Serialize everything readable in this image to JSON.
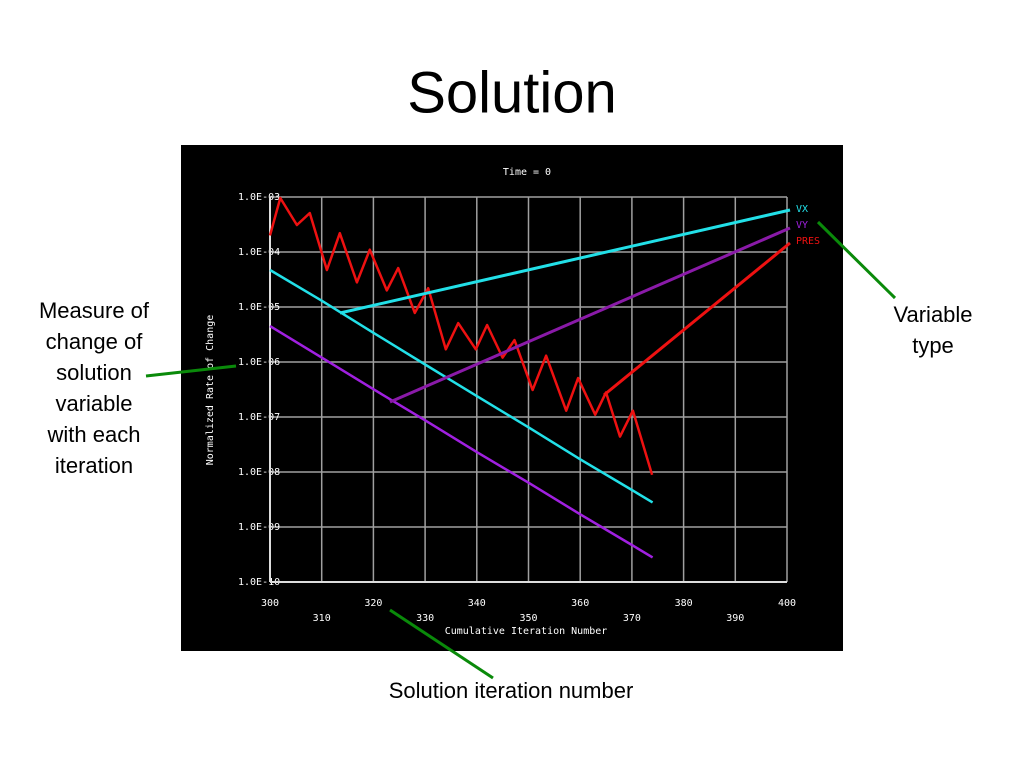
{
  "slide_title": "Solution",
  "annotations": {
    "measure": [
      "Measure of",
      "change of",
      "solution",
      "variable",
      "with each",
      "iteration"
    ],
    "variable_type": [
      "Variable",
      "type"
    ],
    "iteration": [
      "Solution iteration number"
    ]
  },
  "chart_data": {
    "type": "line",
    "title": "Time = 0",
    "x_label": "Cumulative Iteration Number",
    "y_label": "Normalized Rate of Change",
    "y_scale": "log",
    "grid": true,
    "legend": "right",
    "xlim": [
      300,
      400
    ],
    "xticks": [
      300,
      310,
      320,
      330,
      340,
      350,
      360,
      370,
      380,
      390,
      400
    ],
    "ylim": [
      1e-10,
      0.001
    ],
    "yticks": [
      {
        "value": 0.001,
        "label": "1.0E-03"
      },
      {
        "value": 0.0001,
        "label": "1.0E-04"
      },
      {
        "value": 1e-05,
        "label": "1.0E-05"
      },
      {
        "value": 1e-06,
        "label": "1.0E-06"
      },
      {
        "value": 1e-07,
        "label": "1.0E-07"
      },
      {
        "value": 1e-08,
        "label": "1.0E-08"
      },
      {
        "value": 1e-09,
        "label": "1.0E-09"
      },
      {
        "value": 1e-10,
        "label": "1.0E-10"
      }
    ],
    "series": [
      {
        "name": "VX",
        "color": "#22e0e8",
        "x": [
          300,
          310,
          320,
          330,
          340,
          350,
          360,
          370,
          374
        ],
        "values": [
          4.7e-05,
          1.3e-05,
          3.4e-06,
          9e-07,
          2.4e-07,
          6.5e-08,
          1.7e-08,
          4.7e-09,
          2.8e-09
        ]
      },
      {
        "name": "VY",
        "color": "#a020e0",
        "x": [
          300,
          310,
          320,
          330,
          340,
          350,
          360,
          370,
          374
        ],
        "values": [
          4.5e-06,
          1.2e-06,
          3.2e-07,
          8.7e-08,
          2.3e-08,
          6.4e-09,
          1.7e-09,
          4.7e-10,
          2.8e-10
        ]
      },
      {
        "name": "PRES",
        "color": "#ee1111",
        "x": [
          300,
          302,
          305.2,
          307.7,
          311,
          313.5,
          316.8,
          319.3,
          322.6,
          324.8,
          328,
          330.6,
          334,
          336.4,
          339.8,
          342,
          345,
          347.3,
          350.8,
          353.4,
          357.3,
          359.6,
          362.9,
          365,
          367.7,
          370.2,
          373.9
        ],
        "values": [
          0.0002,
          0.00096,
          0.00031,
          0.00051,
          4.7e-05,
          0.00022,
          2.8e-05,
          0.00011,
          2e-05,
          5.1e-05,
          7.8e-06,
          2.2e-05,
          1.7e-06,
          5.1e-06,
          1.7e-06,
          4.7e-06,
          1.2e-06,
          2.5e-06,
          3.1e-07,
          1.3e-06,
          1.3e-07,
          5.1e-07,
          1.1e-07,
          2.8e-07,
          4.4e-08,
          1.3e-07,
          8.9e-09
        ]
      }
    ]
  }
}
